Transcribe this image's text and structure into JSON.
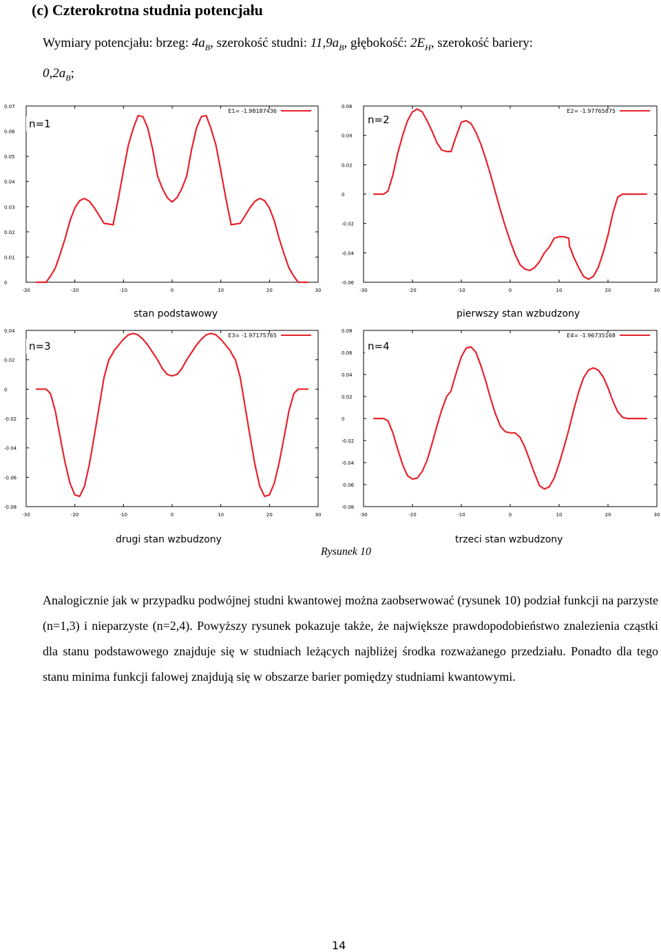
{
  "heading": "(c) Czterokrotna studnia potencjału",
  "dims": {
    "prefix": "Wymiary potencjału: brzeg: ",
    "brzeg": "4a",
    "brzeg_sub": "B",
    "szer_label": ", szerokość studni: ",
    "szer": "11,9a",
    "szer_sub": "B",
    "gleb_label": ", głębokość: ",
    "gleb": "2E",
    "gleb_sub": "H",
    "bar_label": ", szerokość bariery:",
    "bar": "0,2a",
    "bar_sub": "B",
    "bar_end": ";"
  },
  "figure_caption": "Rysunek 10",
  "paragraph": "Analogicznie jak w przypadku podwójnej studni kwantowej można zaobserwować (rysunek 10) podział funkcji na parzyste (n=1,3) i nieparzyste (n=2,4). Powyższy rysunek pokazuje także, że największe prawdopodobieństwo znalezienia cząstki dla stanu podstawowego znajduje się w studniach leżących najbliżej środka rozważanego przedziału. Ponadto dla tego stanu minima funkcji falowej znajdują się w obszarze barier pomiędzy studniami kwantowymi.",
  "page_number": "14",
  "chart_data": [
    {
      "type": "line",
      "label": "n=1",
      "caption": "stan podstawowy",
      "legend": "E1= -1.98187436",
      "series_color": "#e8202a",
      "xlim": [
        -30,
        30
      ],
      "ylim": [
        0,
        0.07
      ],
      "xticks": [
        "-30",
        "-20",
        "-10",
        "0",
        "10",
        "20",
        "30"
      ],
      "yticks": [
        "0",
        "0.01",
        "0.02",
        "0.03",
        "0.04",
        "0.05",
        "0.06",
        "0.07"
      ],
      "x": [
        -28,
        -25.9,
        -25,
        -24,
        -23,
        -22,
        -21,
        -20,
        -19,
        -18,
        -17,
        -16,
        -15,
        -14,
        -13,
        -12.1,
        -12,
        -11,
        -10,
        -9,
        -8,
        -7,
        -6,
        -5,
        -4,
        -3,
        -2,
        -1,
        -0.1,
        0,
        0.1,
        1,
        2,
        3,
        4,
        5,
        6,
        7,
        8,
        9,
        10,
        11,
        12,
        12.1,
        13,
        14,
        15,
        16,
        17,
        18,
        19,
        20,
        21,
        22,
        23,
        24,
        25,
        25.9,
        28
      ],
      "y": [
        0,
        0,
        0.0024,
        0.0057,
        0.0113,
        0.0173,
        0.0244,
        0.0295,
        0.0324,
        0.0333,
        0.0321,
        0.0296,
        0.0265,
        0.0234,
        0.0231,
        0.0228,
        0.0242,
        0.0338,
        0.0443,
        0.0545,
        0.061,
        0.0662,
        0.0658,
        0.0612,
        0.0528,
        0.0422,
        0.0372,
        0.0336,
        0.032,
        0.0322,
        0.032,
        0.0336,
        0.0372,
        0.0422,
        0.0528,
        0.0612,
        0.0658,
        0.0662,
        0.061,
        0.0545,
        0.0443,
        0.0338,
        0.0242,
        0.0228,
        0.0231,
        0.0234,
        0.0265,
        0.0296,
        0.0321,
        0.0333,
        0.0324,
        0.0295,
        0.0244,
        0.0173,
        0.0113,
        0.0057,
        0.0024,
        0,
        0
      ]
    },
    {
      "type": "line",
      "label": "n=2",
      "caption": "pierwszy stan wzbudzony",
      "legend": "E2= -1.97765875",
      "series_color": "#e8202a",
      "xlim": [
        -30,
        30
      ],
      "ylim": [
        -0.06,
        0.06
      ],
      "xticks": [
        "-30",
        "-20",
        "-10",
        "0",
        "10",
        "20",
        "30"
      ],
      "yticks": [
        "-0.06",
        "-0.04",
        "-0.02",
        "0",
        "0.02",
        "0.04",
        "0.06"
      ],
      "x": [
        -28,
        -25.9,
        -25,
        -24,
        -23,
        -22,
        -21,
        -20,
        -19,
        -18,
        -17,
        -16,
        -15,
        -14,
        -13,
        -12.1,
        -12,
        -11,
        -10,
        -9,
        -8,
        -7,
        -6,
        -5,
        -4,
        -3,
        -2,
        -1,
        0,
        1,
        2,
        3,
        4,
        5,
        6,
        7,
        8,
        9,
        10,
        11,
        12,
        12.1,
        13,
        14,
        15,
        16,
        17,
        18,
        19,
        20,
        21,
        22,
        23,
        24,
        25,
        25.9,
        28
      ],
      "y": [
        0,
        0,
        0.002,
        0.013,
        0.028,
        0.04,
        0.05,
        0.056,
        0.058,
        0.056,
        0.05,
        0.043,
        0.035,
        0.03,
        0.029,
        0.029,
        0.03,
        0.04,
        0.049,
        0.05,
        0.048,
        0.042,
        0.034,
        0.024,
        0.013,
        0.001,
        -0.011,
        -0.022,
        -0.032,
        -0.041,
        -0.048,
        -0.051,
        -0.052,
        -0.05,
        -0.046,
        -0.04,
        -0.036,
        -0.03,
        -0.029,
        -0.029,
        -0.03,
        -0.035,
        -0.043,
        -0.05,
        -0.056,
        -0.058,
        -0.056,
        -0.05,
        -0.04,
        -0.028,
        -0.013,
        -0.002,
        0,
        0,
        0,
        0,
        0
      ]
    },
    {
      "type": "line",
      "label": "n=3",
      "caption": "drugi stan wzbudzony",
      "legend": "E3= -1.97175765",
      "series_color": "#e8202a",
      "xlim": [
        -30,
        30
      ],
      "ylim": [
        -0.08,
        0.04
      ],
      "xticks": [
        "-30",
        "-20",
        "-10",
        "0",
        "10",
        "20",
        "30"
      ],
      "yticks": [
        "-0.08",
        "-0.06",
        "-0.04",
        "-0.02",
        "0",
        "0.02",
        "0.04"
      ],
      "x": [
        -28,
        -25.9,
        -25,
        -24,
        -23,
        -22,
        -21,
        -20,
        -19,
        -18,
        -17,
        -16,
        -15,
        -14,
        -13,
        -12.1,
        -12,
        -11,
        -10,
        -9,
        -8,
        -7,
        -6,
        -5,
        -4,
        -3,
        -2,
        -1,
        0,
        1,
        2,
        3,
        4,
        5,
        6,
        7,
        8,
        9,
        10,
        11,
        12,
        12.1,
        13,
        14,
        15,
        16,
        17,
        18,
        19,
        20,
        21,
        22,
        23,
        24,
        25,
        25.9,
        28
      ],
      "y": [
        0,
        0,
        -0.003,
        -0.015,
        -0.033,
        -0.05,
        -0.064,
        -0.072,
        -0.073,
        -0.066,
        -0.051,
        -0.032,
        -0.012,
        0.008,
        0.02,
        0.025,
        0.026,
        0.03,
        0.034,
        0.037,
        0.038,
        0.037,
        0.034,
        0.03,
        0.025,
        0.02,
        0.014,
        0.01,
        0.009,
        0.01,
        0.014,
        0.02,
        0.025,
        0.03,
        0.034,
        0.037,
        0.038,
        0.037,
        0.034,
        0.03,
        0.026,
        0.025,
        0.02,
        0.008,
        -0.012,
        -0.032,
        -0.051,
        -0.066,
        -0.073,
        -0.072,
        -0.064,
        -0.05,
        -0.033,
        -0.015,
        -0.003,
        0,
        0
      ]
    },
    {
      "type": "line",
      "label": "n=4",
      "caption": "trzeci stan wzbudzony",
      "legend": "E4= -1.96735168",
      "series_color": "#e8202a",
      "xlim": [
        -30,
        30
      ],
      "ylim": [
        -0.08,
        0.08
      ],
      "xticks": [
        "-30",
        "-20",
        "-10",
        "0",
        "10",
        "20",
        "30"
      ],
      "yticks": [
        "-0.08",
        "-0.06",
        "-0.04",
        "-0.02",
        "0",
        "0.02",
        "0.04",
        "0.06",
        "0.08"
      ],
      "x": [
        -28,
        -25.9,
        -25,
        -24,
        -23,
        -22,
        -21,
        -20,
        -19,
        -18,
        -17,
        -16,
        -15,
        -14,
        -13,
        -12.1,
        -12,
        -11,
        -10,
        -9,
        -8,
        -7,
        -6,
        -5,
        -4,
        -3,
        -2,
        -1,
        0,
        1,
        2,
        3,
        4,
        5,
        6,
        7,
        8,
        9,
        10,
        11,
        12,
        12.1,
        13,
        14,
        15,
        16,
        17,
        18,
        19,
        20,
        21,
        22,
        23,
        24,
        25,
        25.9,
        28
      ],
      "y": [
        0,
        0,
        -0.002,
        -0.013,
        -0.028,
        -0.042,
        -0.052,
        -0.055,
        -0.054,
        -0.048,
        -0.038,
        -0.023,
        -0.007,
        0.008,
        0.02,
        0.025,
        0.027,
        0.042,
        0.056,
        0.064,
        0.065,
        0.06,
        0.048,
        0.034,
        0.018,
        0.004,
        -0.007,
        -0.012,
        -0.013,
        -0.013,
        -0.017,
        -0.026,
        -0.038,
        -0.05,
        -0.061,
        -0.064,
        -0.062,
        -0.054,
        -0.041,
        -0.026,
        -0.01,
        -0.008,
        0.008,
        0.024,
        0.037,
        0.044,
        0.046,
        0.044,
        0.038,
        0.028,
        0.016,
        0.006,
        0.001,
        0,
        0,
        0,
        0
      ]
    }
  ]
}
